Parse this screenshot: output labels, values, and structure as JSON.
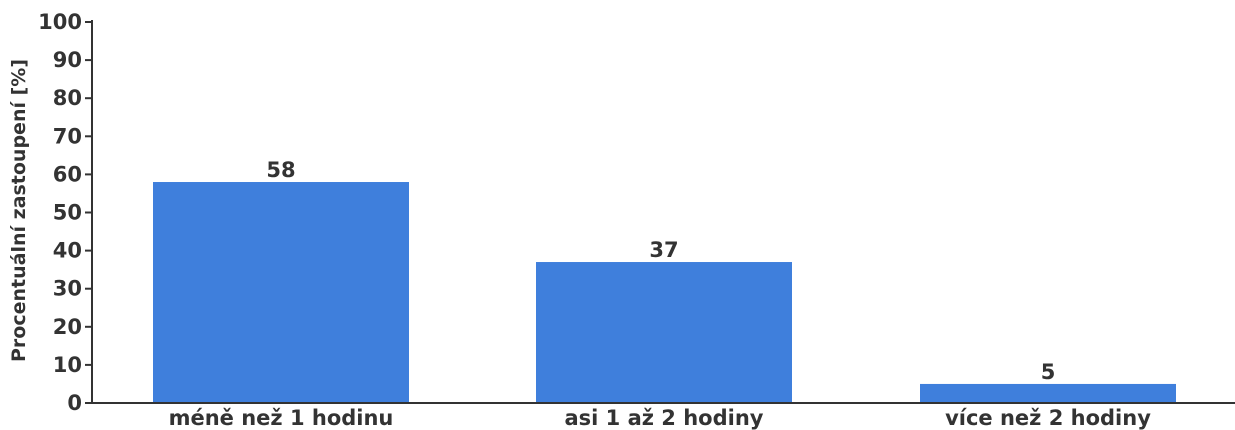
{
  "chart_data": {
    "type": "bar",
    "categories": [
      "méně než 1 hodinu",
      "asi 1 až 2 hodiny",
      "více než 2 hodiny"
    ],
    "values": [
      58,
      37,
      5
    ],
    "title": "",
    "xlabel": "",
    "ylabel": "Procentuální zastoupení [%]",
    "ylim": [
      0,
      100
    ],
    "yticks": [
      0,
      10,
      20,
      30,
      40,
      50,
      60,
      70,
      80,
      90,
      100
    ],
    "grid": false,
    "data_labels": true,
    "colors": {
      "bar": "#3f7fdc",
      "axis": "#333333",
      "text": "#333333"
    }
  }
}
